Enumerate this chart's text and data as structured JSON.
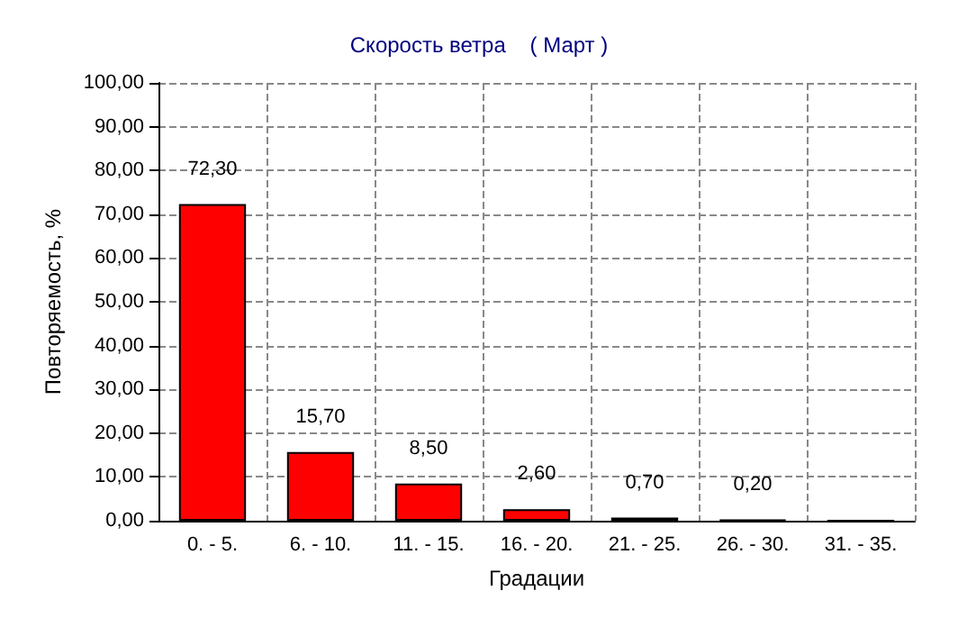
{
  "chart_data": {
    "type": "bar",
    "title": "Скорость ветра    ( Март )",
    "xlabel": "Градации",
    "ylabel": "Повторяемость, %",
    "categories": [
      "0. - 5.",
      "6. - 10.",
      "11. - 15.",
      "16. - 20.",
      "21. - 25.",
      "26. - 30.",
      "31. - 35."
    ],
    "values": [
      72.3,
      15.7,
      8.5,
      2.6,
      0.7,
      0.2,
      0
    ],
    "value_labels": [
      "72,30",
      "15,70",
      "8,50",
      "2,60",
      "0,70",
      "0,20",
      null
    ],
    "color": "#ff0000",
    "ylim": [
      0,
      100
    ],
    "yticks": [
      {
        "value": 0,
        "label": "0,00"
      },
      {
        "value": 10,
        "label": "10,00"
      },
      {
        "value": 20,
        "label": "20,00"
      },
      {
        "value": 30,
        "label": "30,00"
      },
      {
        "value": 40,
        "label": "40,00"
      },
      {
        "value": 50,
        "label": "50,00"
      },
      {
        "value": 60,
        "label": "60,00"
      },
      {
        "value": 70,
        "label": "70,00"
      },
      {
        "value": 80,
        "label": "80,00"
      },
      {
        "value": 90,
        "label": "90,00"
      },
      {
        "value": 100,
        "label": "100,00"
      }
    ],
    "grid": true
  }
}
